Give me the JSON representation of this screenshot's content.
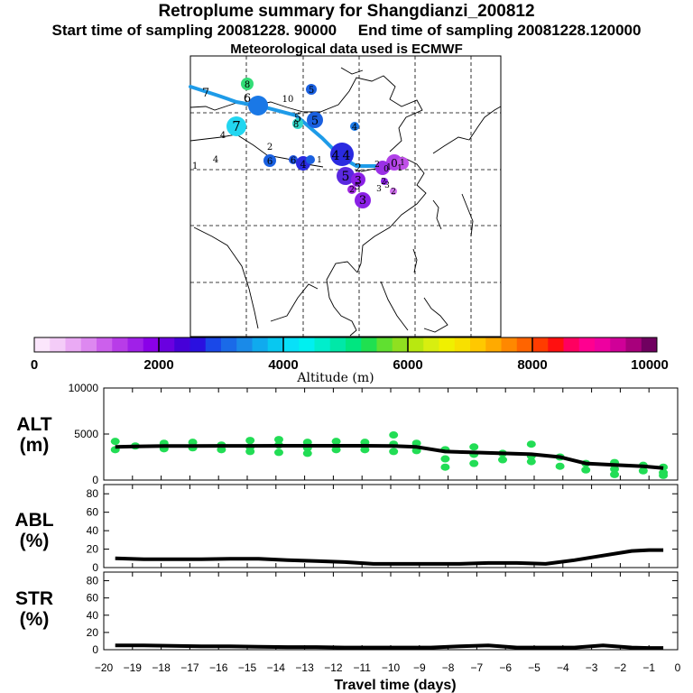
{
  "header": {
    "title": "Retroplume summary for Shangdianzi_200812",
    "sampling": "Start time of sampling 20081228. 90000     End time of sampling 20081228.120000",
    "met": "Meteorological data used is ECMWF"
  },
  "colors": {
    "track": "#1e9be8",
    "alt_points": "#22dd55",
    "line": "#000000",
    "grid": "#000000"
  },
  "map": {
    "labels": [
      {
        "t": "7",
        "c": "#16c8e8"
      },
      {
        "t": "8",
        "c": "#33dd77"
      },
      {
        "t": "6",
        "c": "#1a78e6"
      },
      {
        "t": "10",
        "c": "#22ccee"
      },
      {
        "t": "5",
        "c": "#1a60e0"
      },
      {
        "t": "7",
        "c": "#22d6f0"
      },
      {
        "t": "5",
        "c": "#30d8c8"
      },
      {
        "t": "8",
        "c": "#30d8c8"
      },
      {
        "t": "5",
        "c": "#1a60e0"
      },
      {
        "t": "4",
        "c": "#1a78e6"
      },
      {
        "t": "4",
        "c": "#1a78e6"
      },
      {
        "t": "2",
        "c": "#1a60e0"
      },
      {
        "t": "4",
        "c": "#1a60e0"
      },
      {
        "t": "6",
        "c": "#1a60e0"
      },
      {
        "t": "6",
        "c": "#1e54e0"
      },
      {
        "t": "4",
        "c": "#1a48dc"
      },
      {
        "t": "1",
        "c": "#1a60e0"
      },
      {
        "t": "4",
        "c": "#2a2ae0"
      },
      {
        "t": "4",
        "c": "#2a2ae0"
      },
      {
        "t": "2",
        "c": "#5a28e0"
      },
      {
        "t": "5",
        "c": "#5a28e0"
      },
      {
        "t": "3",
        "c": "#8a20e6"
      },
      {
        "t": "3",
        "c": "#8a20e6"
      },
      {
        "t": "2",
        "c": "#a028e0"
      },
      {
        "t": "2",
        "c": "#c050e8"
      },
      {
        "t": "0",
        "c": "#9a30e6"
      },
      {
        "t": "1",
        "c": "#b040e8"
      },
      {
        "t": "1",
        "c": "#b040e8"
      },
      {
        "t": "1",
        "c": "#b040e8"
      },
      {
        "t": "0",
        "c": "#b040e8"
      },
      {
        "t": "2",
        "c": "#b040e8"
      },
      {
        "t": "3",
        "c": "#8a20e6"
      },
      {
        "t": "5",
        "c": "#9a30e6"
      },
      {
        "t": "3",
        "c": "#8a20e6"
      },
      {
        "t": "2",
        "c": "#d070ee"
      }
    ]
  },
  "colorbar": {
    "ticks": [
      "0",
      "2000",
      "4000",
      "6000",
      "8000",
      "10000"
    ],
    "label": "Altitude (m)",
    "colors": [
      "#fbe6fc",
      "#f4ccf8",
      "#eaaaf4",
      "#dd88f0",
      "#cc60ec",
      "#b83ce8",
      "#a020e8",
      "#8a00e8",
      "#6a00e0",
      "#4600d8",
      "#2a10e0",
      "#1a48e8",
      "#1a6ae8",
      "#1a8ae8",
      "#10aaee",
      "#08c8f0",
      "#08e0f8",
      "#00f0f0",
      "#00eecc",
      "#00e8a8",
      "#00e680",
      "#20e050",
      "#60e030",
      "#90e020",
      "#b8e810",
      "#d8ee10",
      "#f0f000",
      "#f8e000",
      "#ffc800",
      "#ffaa00",
      "#ff8800",
      "#ff6400",
      "#ff3c00",
      "#ff1010",
      "#ff0060",
      "#ff0090",
      "#ee00a0",
      "#d00098",
      "#a8007c",
      "#700060"
    ]
  },
  "chart_data": [
    {
      "type": "scatter",
      "title": "ALT (m)",
      "ylabel_top": "ALT",
      "ylabel_bottom": "(m)",
      "ylim": [
        0,
        10000
      ],
      "yticks": [
        "0",
        "5000",
        "10000"
      ],
      "xlim": [
        -20,
        0
      ],
      "x": [
        -19.6,
        -18.9,
        -17.9,
        -16.9,
        -15.9,
        -14.9,
        -13.9,
        -12.9,
        -11.9,
        -10.9,
        -9.9,
        -9.1,
        -8.1,
        -7.1,
        -6.1,
        -5.1,
        -4.1,
        -3.2,
        -2.2,
        -1.2,
        -0.5
      ],
      "mean_line": [
        3600,
        3650,
        3700,
        3700,
        3720,
        3720,
        3730,
        3730,
        3730,
        3730,
        3700,
        3600,
        3100,
        3000,
        2900,
        2800,
        2500,
        1800,
        1650,
        1500,
        1300
      ],
      "scatter_points": [
        [
          -19.6,
          4200
        ],
        [
          -19.6,
          3300
        ],
        [
          -18.9,
          3700
        ],
        [
          -17.9,
          4000
        ],
        [
          -17.9,
          3400
        ],
        [
          -16.9,
          4100
        ],
        [
          -16.9,
          3500
        ],
        [
          -15.9,
          3800
        ],
        [
          -15.9,
          3300
        ],
        [
          -14.9,
          4300
        ],
        [
          -14.9,
          3600
        ],
        [
          -14.9,
          3100
        ],
        [
          -13.9,
          4400
        ],
        [
          -13.9,
          3800
        ],
        [
          -13.9,
          3000
        ],
        [
          -12.9,
          4100
        ],
        [
          -12.9,
          3500
        ],
        [
          -12.9,
          2900
        ],
        [
          -11.9,
          4200
        ],
        [
          -11.9,
          3300
        ],
        [
          -10.9,
          4100
        ],
        [
          -10.9,
          3300
        ],
        [
          -9.9,
          4900
        ],
        [
          -9.9,
          3900
        ],
        [
          -9.9,
          3100
        ],
        [
          -9.1,
          4000
        ],
        [
          -9.1,
          3200
        ],
        [
          -8.1,
          3300
        ],
        [
          -8.1,
          2300
        ],
        [
          -8.1,
          1400
        ],
        [
          -7.1,
          3600
        ],
        [
          -7.1,
          2800
        ],
        [
          -7.1,
          1800
        ],
        [
          -6.1,
          2900
        ],
        [
          -6.1,
          2200
        ],
        [
          -5.1,
          3900
        ],
        [
          -5.1,
          2600
        ],
        [
          -5.1,
          2000
        ],
        [
          -4.1,
          2500
        ],
        [
          -4.1,
          1500
        ],
        [
          -3.2,
          1800
        ],
        [
          -3.2,
          1100
        ],
        [
          -2.2,
          1900
        ],
        [
          -2.2,
          1200
        ],
        [
          -2.2,
          600
        ],
        [
          -1.2,
          1600
        ],
        [
          -1.2,
          1000
        ],
        [
          -0.5,
          1400
        ],
        [
          -0.5,
          800
        ],
        [
          -0.5,
          500
        ]
      ]
    },
    {
      "type": "line",
      "title": "ABL (%)",
      "ylabel_top": "ABL",
      "ylabel_bottom": "(%)",
      "ylim": [
        0,
        90
      ],
      "yticks": [
        "0",
        "20",
        "40",
        "60",
        "80"
      ],
      "xlim": [
        -20,
        0
      ],
      "x": [
        -19.6,
        -18.6,
        -17.6,
        -16.6,
        -15.6,
        -14.6,
        -13.6,
        -12.6,
        -11.6,
        -10.6,
        -9.6,
        -8.6,
        -7.6,
        -6.6,
        -5.6,
        -4.6,
        -3.6,
        -2.6,
        -1.6,
        -1.0,
        -0.5
      ],
      "values": [
        10,
        9,
        9,
        9,
        9.5,
        9.5,
        8,
        7,
        6,
        4,
        4,
        4,
        4,
        5,
        5,
        4,
        8,
        13,
        18,
        19,
        19
      ]
    },
    {
      "type": "line",
      "title": "STR (%)",
      "ylabel_top": "STR",
      "ylabel_bottom": "(%)",
      "ylim": [
        0,
        90
      ],
      "yticks": [
        "0",
        "20",
        "40",
        "60",
        "80"
      ],
      "xlim": [
        -20,
        0
      ],
      "xlabel": "Travel time (days)",
      "xticks": [
        "−20",
        "−19",
        "−18",
        "−17",
        "−16",
        "−15",
        "−14",
        "−13",
        "−12",
        "−11",
        "−10",
        "−9",
        "−8",
        "−7",
        "−6",
        "−5",
        "−4",
        "−3",
        "−2",
        "−1",
        "0"
      ],
      "x": [
        -19.6,
        -18.6,
        -17.6,
        -16.6,
        -15.6,
        -14.6,
        -13.6,
        -12.6,
        -11.6,
        -10.6,
        -9.6,
        -8.6,
        -7.6,
        -6.6,
        -5.6,
        -4.6,
        -3.6,
        -2.6,
        -1.6,
        -1.0,
        -0.5
      ],
      "values": [
        5,
        5,
        4.5,
        4,
        4,
        3.5,
        3,
        3,
        2.5,
        2.5,
        2.5,
        2.5,
        4,
        5,
        2.5,
        2.5,
        2.5,
        5,
        2.5,
        2,
        2
      ]
    }
  ]
}
